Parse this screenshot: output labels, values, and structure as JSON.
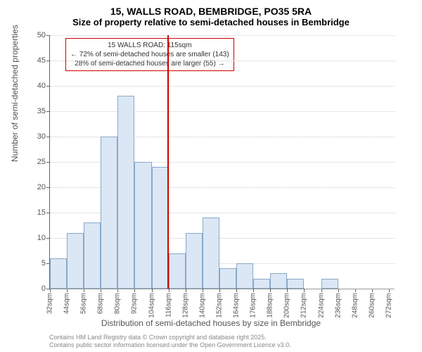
{
  "title": {
    "main": "15, WALLS ROAD, BEMBRIDGE, PO35 5RA",
    "sub": "Size of property relative to semi-detached houses in Bembridge"
  },
  "chart": {
    "type": "histogram",
    "ylabel": "Number of semi-detached properties",
    "xlabel": "Distribution of semi-detached houses by size in Bembridge",
    "ylim": [
      0,
      50
    ],
    "ytick_step": 5,
    "background_color": "#ffffff",
    "grid_color": "#cccccc",
    "bar_fill": "#dbe7f5",
    "bar_border": "#8aa8c8",
    "axis_color": "#666666",
    "tick_font_size": 11,
    "label_font_size": 12,
    "marker_color": "#d00000",
    "marker_value": 115,
    "x_ticks": [
      "32sqm",
      "44sqm",
      "56sqm",
      "68sqm",
      "80sqm",
      "92sqm",
      "104sqm",
      "116sqm",
      "128sqm",
      "140sqm",
      "152sqm",
      "164sqm",
      "176sqm",
      "188sqm",
      "200sqm",
      "212sqm",
      "224sqm",
      "236sqm",
      "248sqm",
      "260sqm",
      "272sqm"
    ],
    "bins": [
      {
        "start": 32,
        "end": 44,
        "count": 6
      },
      {
        "start": 44,
        "end": 56,
        "count": 11
      },
      {
        "start": 56,
        "end": 68,
        "count": 13
      },
      {
        "start": 68,
        "end": 80,
        "count": 30
      },
      {
        "start": 80,
        "end": 92,
        "count": 38
      },
      {
        "start": 92,
        "end": 104,
        "count": 25
      },
      {
        "start": 104,
        "end": 116,
        "count": 24
      },
      {
        "start": 116,
        "end": 128,
        "count": 7
      },
      {
        "start": 128,
        "end": 140,
        "count": 11
      },
      {
        "start": 140,
        "end": 152,
        "count": 14
      },
      {
        "start": 152,
        "end": 164,
        "count": 4
      },
      {
        "start": 164,
        "end": 176,
        "count": 5
      },
      {
        "start": 176,
        "end": 188,
        "count": 2
      },
      {
        "start": 188,
        "end": 200,
        "count": 3
      },
      {
        "start": 200,
        "end": 212,
        "count": 2
      },
      {
        "start": 212,
        "end": 224,
        "count": 0
      },
      {
        "start": 224,
        "end": 236,
        "count": 2
      },
      {
        "start": 236,
        "end": 248,
        "count": 0
      },
      {
        "start": 248,
        "end": 260,
        "count": 0
      },
      {
        "start": 260,
        "end": 272,
        "count": 0
      }
    ],
    "x_range": [
      32,
      276
    ]
  },
  "annotation": {
    "line1": "15 WALLS ROAD: 115sqm",
    "line2": "← 72% of semi-detached houses are smaller (143)",
    "line3": "28% of semi-detached houses are larger (55) →"
  },
  "footer": {
    "line1": "Contains HM Land Registry data © Crown copyright and database right 2025.",
    "line2": "Contains public sector information licensed under the Open Government Licence v3.0."
  }
}
